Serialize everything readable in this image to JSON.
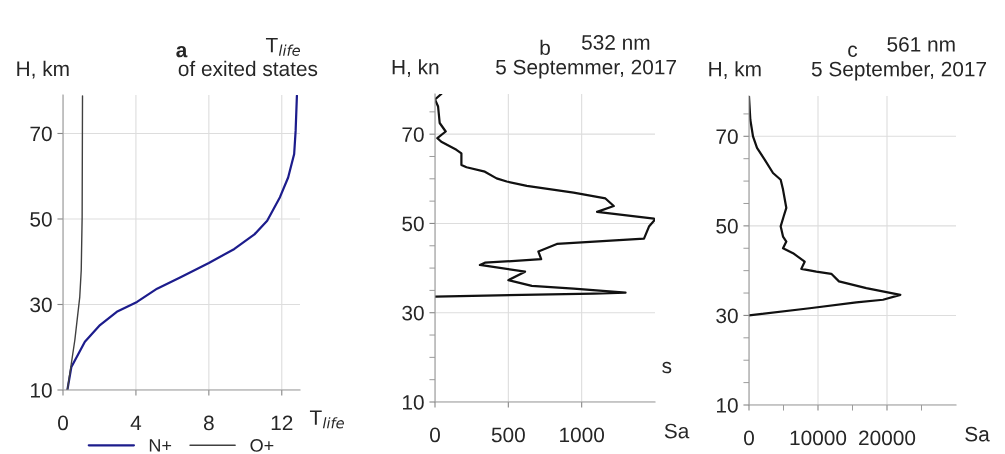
{
  "chart_data": [
    {
      "type": "line",
      "orientation": "horizontal",
      "title": "a",
      "ylabel": "H, km",
      "xlabel": "T$_{life}$",
      "annotations": [
        "T$_{life}$",
        "of exited states"
      ],
      "xlim": [
        0,
        13
      ],
      "xticks": [
        0,
        4,
        8,
        12
      ],
      "ylim": [
        10,
        79
      ],
      "yticks": [
        10,
        30,
        50,
        70
      ],
      "grid": true,
      "legend": "bottom",
      "series": [
        {
          "name": "N+",
          "color": "#1c1c8c",
          "x": [
            10,
            15.4,
            21.3,
            25.2,
            28.3,
            30.6,
            33.7,
            36.4,
            39.7,
            43,
            46.4,
            49.6,
            55.1,
            59.7,
            65.2,
            70.6,
            78.8
          ],
          "values": [
            0.24,
            0.46,
            1.2,
            2.03,
            2.95,
            4.06,
            5.16,
            6.45,
            8.0,
            9.4,
            10.5,
            11.2,
            11.9,
            12.35,
            12.68,
            12.76,
            12.83
          ]
        },
        {
          "name": "O+",
          "color": "#404040",
          "x": [
            10,
            21.7,
            31.8,
            38,
            50.4,
            78.8
          ],
          "values": [
            0.24,
            0.65,
            0.92,
            1.0,
            1.05,
            1.07
          ]
        }
      ]
    },
    {
      "type": "line",
      "orientation": "horizontal",
      "title": "b",
      "ylabel": "H, kn",
      "xlabel": "Sa",
      "annotations": [
        "532 nm",
        "5 Septemmer, 2017",
        "s"
      ],
      "xlim": [
        0,
        1500
      ],
      "xticks": [
        0,
        500,
        1000
      ],
      "ylim": [
        10,
        79
      ],
      "yticks": [
        10,
        {
          "value": 15,
          "label": null
        },
        {
          "value": 20,
          "label": null
        },
        {
          "value": 25,
          "label": null
        },
        30,
        {
          "value": 35,
          "label": null
        },
        {
          "value": 40,
          "label": null
        },
        {
          "value": 45,
          "label": null
        },
        50,
        {
          "value": 55,
          "label": null
        },
        {
          "value": 60,
          "label": null
        },
        {
          "value": 65,
          "label": null
        },
        70,
        {
          "value": 75,
          "label": null
        }
      ],
      "grid": true,
      "series": [
        {
          "color": "#111111",
          "x": [
            79,
            77.8,
            76.2,
            72.5,
            70.6,
            69.1,
            68.3,
            66.5,
            65.7,
            63.1,
            62.6,
            61.6,
            60.1,
            59.4,
            58.4,
            56.9,
            55.6,
            53.9,
            52.6,
            51.1,
            50.8,
            49.3,
            46.6,
            45.4,
            43.7,
            42,
            41.2,
            40.7,
            39.2,
            37.3,
            36,
            35.4,
            34.5,
            34.3,
            33.6
          ],
          "values": [
            43,
            0,
            21,
            32,
            73,
            16,
            43,
            146,
            180,
            180,
            215,
            340,
            420,
            489,
            626,
            945,
            1162,
            1219,
            1105,
            1493,
            1498,
            1459,
            1425,
            831,
            705,
            724,
            340,
            306,
            614,
            500,
            660,
            945,
            1299,
            1082,
            0
          ]
        }
      ]
    },
    {
      "type": "line",
      "orientation": "horizontal",
      "title": "c",
      "ylabel": "H, km",
      "xlabel": "Sa",
      "annotations": [
        "561 nm",
        "5 September, 2017"
      ],
      "xlim": [
        0,
        30000
      ],
      "xticks": [
        0,
        {
          "value": 5000,
          "label": null
        },
        10000,
        {
          "value": 15000,
          "label": null
        },
        20000,
        {
          "value": 25000,
          "label": null
        }
      ],
      "ylim": [
        10,
        79
      ],
      "yticks": [
        10,
        {
          "value": 15,
          "label": null
        },
        {
          "value": 20,
          "label": null
        },
        {
          "value": 25,
          "label": null
        },
        30,
        {
          "value": 35,
          "label": null
        },
        {
          "value": 40,
          "label": null
        },
        {
          "value": 45,
          "label": null
        },
        50,
        {
          "value": 55,
          "label": null
        },
        {
          "value": 60,
          "label": null
        },
        {
          "value": 65,
          "label": null
        },
        70,
        {
          "value": 75,
          "label": null
        }
      ],
      "grid": true,
      "series": [
        {
          "color": "#111111",
          "x": [
            78.9,
            73.7,
            70,
            67.4,
            64.8,
            61.8,
            60.3,
            58.1,
            54,
            52.1,
            49.9,
            47.6,
            46.5,
            45,
            43.9,
            42,
            40.4,
            39.8,
            39.3,
            37.6,
            36.1,
            34.6,
            33.5,
            32.9,
            31.6,
            30
          ],
          "values": [
            0,
            193,
            580,
            1160,
            2270,
            3480,
            4590,
            4930,
            5410,
            5020,
            4590,
            4930,
            5410,
            4930,
            6380,
            8070,
            7580,
            9760,
            11930,
            13040,
            17000,
            21930,
            19420,
            15550,
            8790,
            0
          ]
        }
      ]
    }
  ]
}
